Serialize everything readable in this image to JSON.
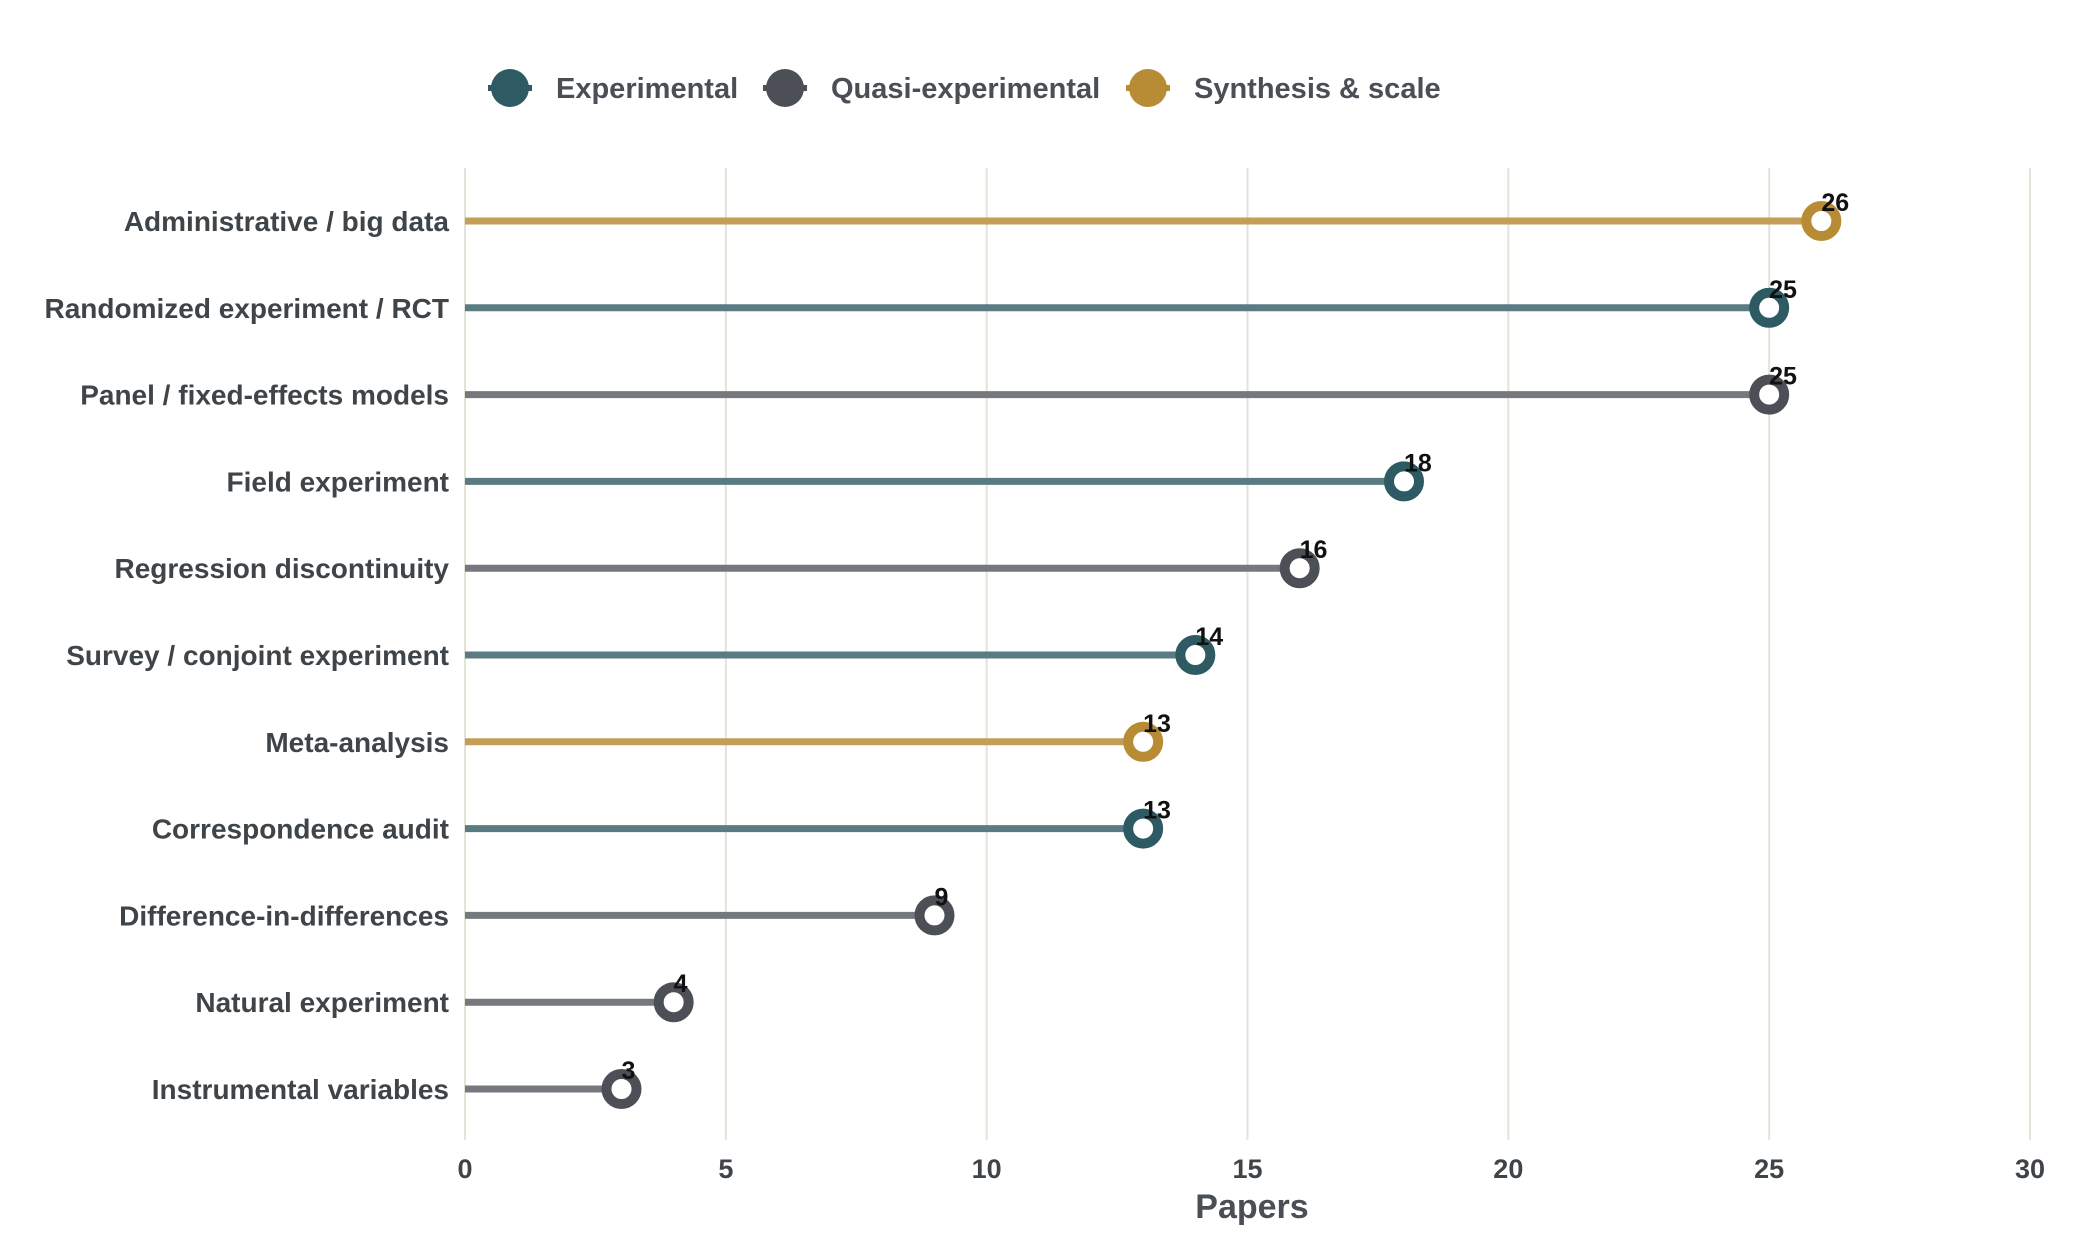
{
  "chart_data": {
    "type": "lollipop",
    "categories": [
      "Administrative / big data",
      "Randomized experiment / RCT",
      "Panel / fixed-effects models",
      "Field experiment",
      "Regression discontinuity",
      "Survey / conjoint experiment",
      "Meta-analysis",
      "Correspondence audit",
      "Difference-in-differences",
      "Natural experiment",
      "Instrumental variables"
    ],
    "values": [
      26,
      25,
      25,
      18,
      16,
      14,
      13,
      13,
      9,
      4,
      3
    ],
    "groups": [
      "Synthesis & scale",
      "Experimental",
      "Quasi-experimental",
      "Experimental",
      "Quasi-experimental",
      "Experimental",
      "Synthesis & scale",
      "Experimental",
      "Quasi-experimental",
      "Quasi-experimental",
      "Quasi-experimental"
    ],
    "legend": [
      {
        "name": "Experimental",
        "color": "#2e5b63",
        "line_color": "#5b7b82"
      },
      {
        "name": "Quasi-experimental",
        "color": "#4c4f55",
        "line_color": "#75787d"
      },
      {
        "name": "Synthesis & scale",
        "color": "#b88c35",
        "line_color": "#c39e56"
      }
    ],
    "legend_position": "top",
    "xlabel": "Papers",
    "ylabel": "",
    "xlim": [
      0,
      30
    ],
    "xticks": [
      0,
      5,
      10,
      15,
      20,
      25,
      30
    ],
    "grid": "vertical",
    "grid_color": "#e3e3d8"
  }
}
